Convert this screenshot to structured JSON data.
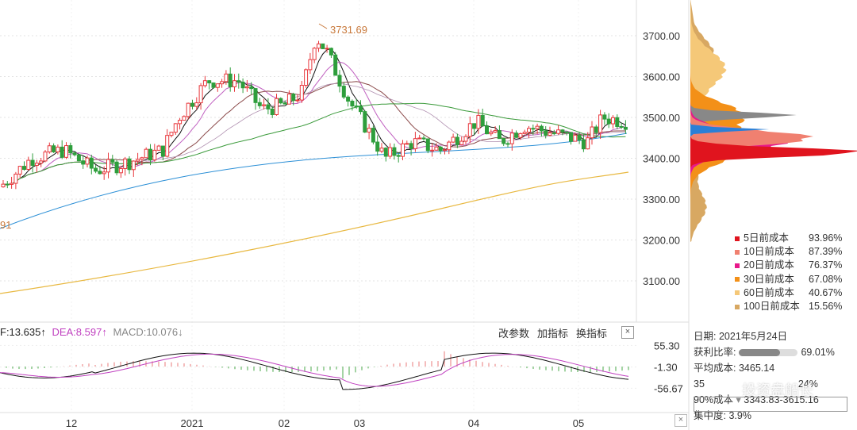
{
  "chart_data": {
    "type": "candlestick",
    "price_axis": {
      "ticks": [
        "3700.00",
        "3600.00",
        "3500.00",
        "3400.00",
        "3300.00",
        "3200.00",
        "3100.00"
      ],
      "range": [
        3030,
        3780
      ]
    },
    "time_axis": {
      "labels": [
        "12",
        "2021",
        "02",
        "03",
        "04",
        "05"
      ]
    },
    "annotations": {
      "high": "3731.69",
      "left_value": "91"
    },
    "macd": {
      "header": {
        "dif": "F:13.635",
        "dif_arrow": "↑",
        "dea": "DEA:8.597",
        "dea_arrow": "↑",
        "macd": "MACD:10.076",
        "macd_arrow": "↓"
      },
      "ticks": [
        "55.30",
        "-1.30",
        "-56.67"
      ]
    },
    "cost_distribution": {
      "legend": [
        {
          "label": "5日前成本",
          "value": "93.96%",
          "color": "#e0141e"
        },
        {
          "label": "10日前成本",
          "value": "87.39%",
          "color": "#f08070"
        },
        {
          "label": "20日前成本",
          "value": "76.37%",
          "color": "#e8188a"
        },
        {
          "label": "30日前成本",
          "value": "67.08%",
          "color": "#f39018"
        },
        {
          "label": "60日前成本",
          "value": "40.67%",
          "color": "#f5c878"
        },
        {
          "label": "100日前成本",
          "value": "15.56%",
          "color": "#d8a862"
        }
      ]
    }
  },
  "toolbar": {
    "params": "改参数",
    "add_indicator": "加指标",
    "switch_indicator": "换指标",
    "close": "×"
  },
  "info": {
    "date_label": "日期:",
    "date": "2021年5月24日",
    "profit_label": "获利比率:",
    "profit": "69.01%",
    "profit_ratio": 0.69,
    "avg_label": "平均成本:",
    "avg": "3465.14",
    "row4_left": "35",
    "row4_right": "24%",
    "cost90_label": "90%成本",
    "cost90": "3343.83-3615.16",
    "concentration_label": "集中度:",
    "concentration": "3.9%"
  },
  "watermark": "投资盘船长"
}
